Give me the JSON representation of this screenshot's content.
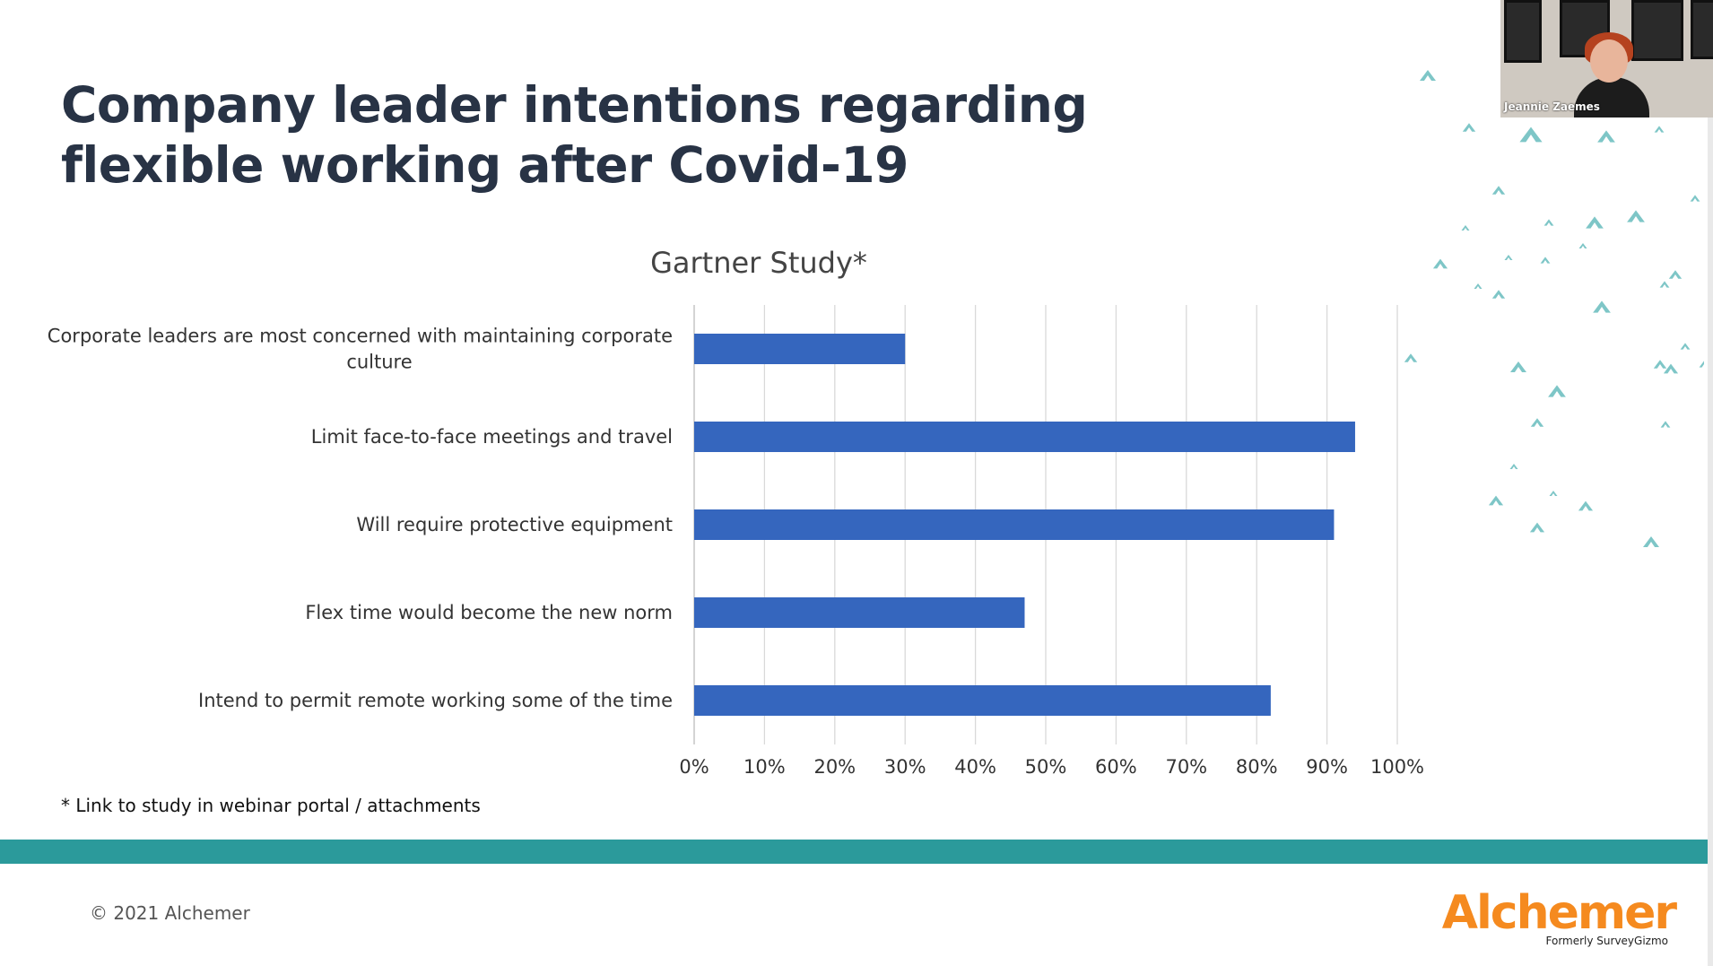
{
  "slide": {
    "title_lines": [
      "Company leader intentions regarding",
      "flexible working after Covid-19"
    ],
    "footnote": "* Link to study in webinar portal / attachments",
    "copyright": "© 2021 Alchemer",
    "logo_text": "Alchemer",
    "logo_subtext": "Formerly SurveyGizmo",
    "band_color": "#2b9a9b",
    "logo_color": "#f58a1f"
  },
  "video": {
    "participant_name": "Jeannie Zaemes"
  },
  "chart_data": {
    "type": "bar",
    "orientation": "horizontal",
    "title": "Gartner Study*",
    "categories": [
      [
        "Corporate leaders are most concerned with maintaining corporate",
        "culture"
      ],
      [
        "Limit face-to-face meetings and travel"
      ],
      [
        "Will require protective equipment"
      ],
      [
        "Flex time would become the new norm"
      ],
      [
        "Intend to permit remote working some of the time"
      ]
    ],
    "values": [
      30,
      94,
      91,
      47,
      82
    ],
    "xlim": [
      0,
      100
    ],
    "ticks": [
      "0%",
      "10%",
      "20%",
      "30%",
      "40%",
      "50%",
      "60%",
      "70%",
      "80%",
      "90%",
      "100%"
    ],
    "grid": "vertical",
    "bar_color": "#3566be",
    "xlabel": "",
    "ylabel": ""
  }
}
